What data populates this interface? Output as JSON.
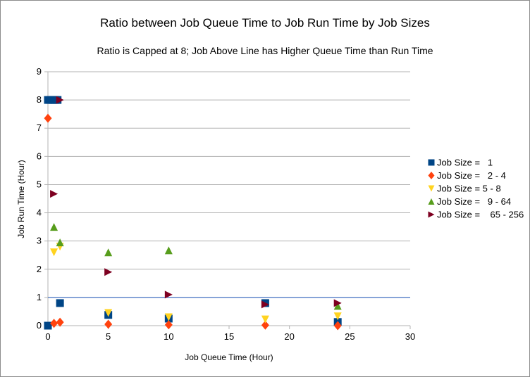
{
  "chart_data": {
    "type": "scatter",
    "title": "Ratio between Job Queue Time to Job Run Time by Job Sizes",
    "subtitle": "Ratio is Capped at 8; Job Above Line has Higher Queue Time than Run Time",
    "xlabel": "Job Queue Time (Hour)",
    "ylabel": "Job Run Time (Hour)",
    "xlim": [
      0,
      30
    ],
    "ylim": [
      0,
      9
    ],
    "xticks": [
      "0",
      "5",
      "10",
      "15",
      "20",
      "25",
      "30"
    ],
    "yticks": [
      "0",
      "1",
      "2",
      "3",
      "4",
      "5",
      "6",
      "7",
      "8",
      "9"
    ],
    "grid": "horizontal",
    "legend_position": "right",
    "reference_line": {
      "y": 1,
      "color": "#4472c4"
    },
    "series": [
      {
        "name": "Job Size =   1",
        "marker": "square",
        "color": "#004586",
        "points": [
          {
            "x": 0,
            "y": 0
          },
          {
            "x": 0,
            "y": 8
          },
          {
            "x": 0.2,
            "y": 8
          },
          {
            "x": 0.4,
            "y": 8
          },
          {
            "x": 0.6,
            "y": 8
          },
          {
            "x": 0.8,
            "y": 8
          },
          {
            "x": 1,
            "y": 0.8
          },
          {
            "x": 5,
            "y": 0.38
          },
          {
            "x": 10,
            "y": 0.25
          },
          {
            "x": 18,
            "y": 0.8
          },
          {
            "x": 24,
            "y": 0.13
          }
        ]
      },
      {
        "name": "Job Size =   2 - 4",
        "marker": "diamond",
        "color": "#ff420e",
        "points": [
          {
            "x": 0,
            "y": 7.35
          },
          {
            "x": 0.5,
            "y": 0.08
          },
          {
            "x": 1,
            "y": 0.12
          },
          {
            "x": 5,
            "y": 0.05
          },
          {
            "x": 10,
            "y": 0.03
          },
          {
            "x": 18,
            "y": 0.02
          },
          {
            "x": 24,
            "y": 0.0
          }
        ]
      },
      {
        "name": "Job Size = 5 - 8",
        "marker": "triangle-down",
        "color": "#ffd320",
        "points": [
          {
            "x": 0.5,
            "y": 2.6
          },
          {
            "x": 1,
            "y": 2.8
          },
          {
            "x": 5,
            "y": 0.45
          },
          {
            "x": 10,
            "y": 0.3
          },
          {
            "x": 18,
            "y": 0.22
          },
          {
            "x": 24,
            "y": 0.33
          }
        ]
      },
      {
        "name": "Job Size =   9 - 64",
        "marker": "triangle-up",
        "color": "#579d1c",
        "points": [
          {
            "x": 0.5,
            "y": 3.5
          },
          {
            "x": 1,
            "y": 2.95
          },
          {
            "x": 5,
            "y": 2.6
          },
          {
            "x": 10,
            "y": 2.67
          },
          {
            "x": 24,
            "y": 0.7
          }
        ]
      },
      {
        "name": "Job Size =    65 - 256",
        "marker": "triangle-right",
        "color": "#7e0021",
        "points": [
          {
            "x": 0.5,
            "y": 4.67
          },
          {
            "x": 1,
            "y": 8
          },
          {
            "x": 5,
            "y": 1.9
          },
          {
            "x": 10,
            "y": 1.1
          },
          {
            "x": 18,
            "y": 0.75
          },
          {
            "x": 24,
            "y": 0.8
          }
        ]
      }
    ]
  }
}
